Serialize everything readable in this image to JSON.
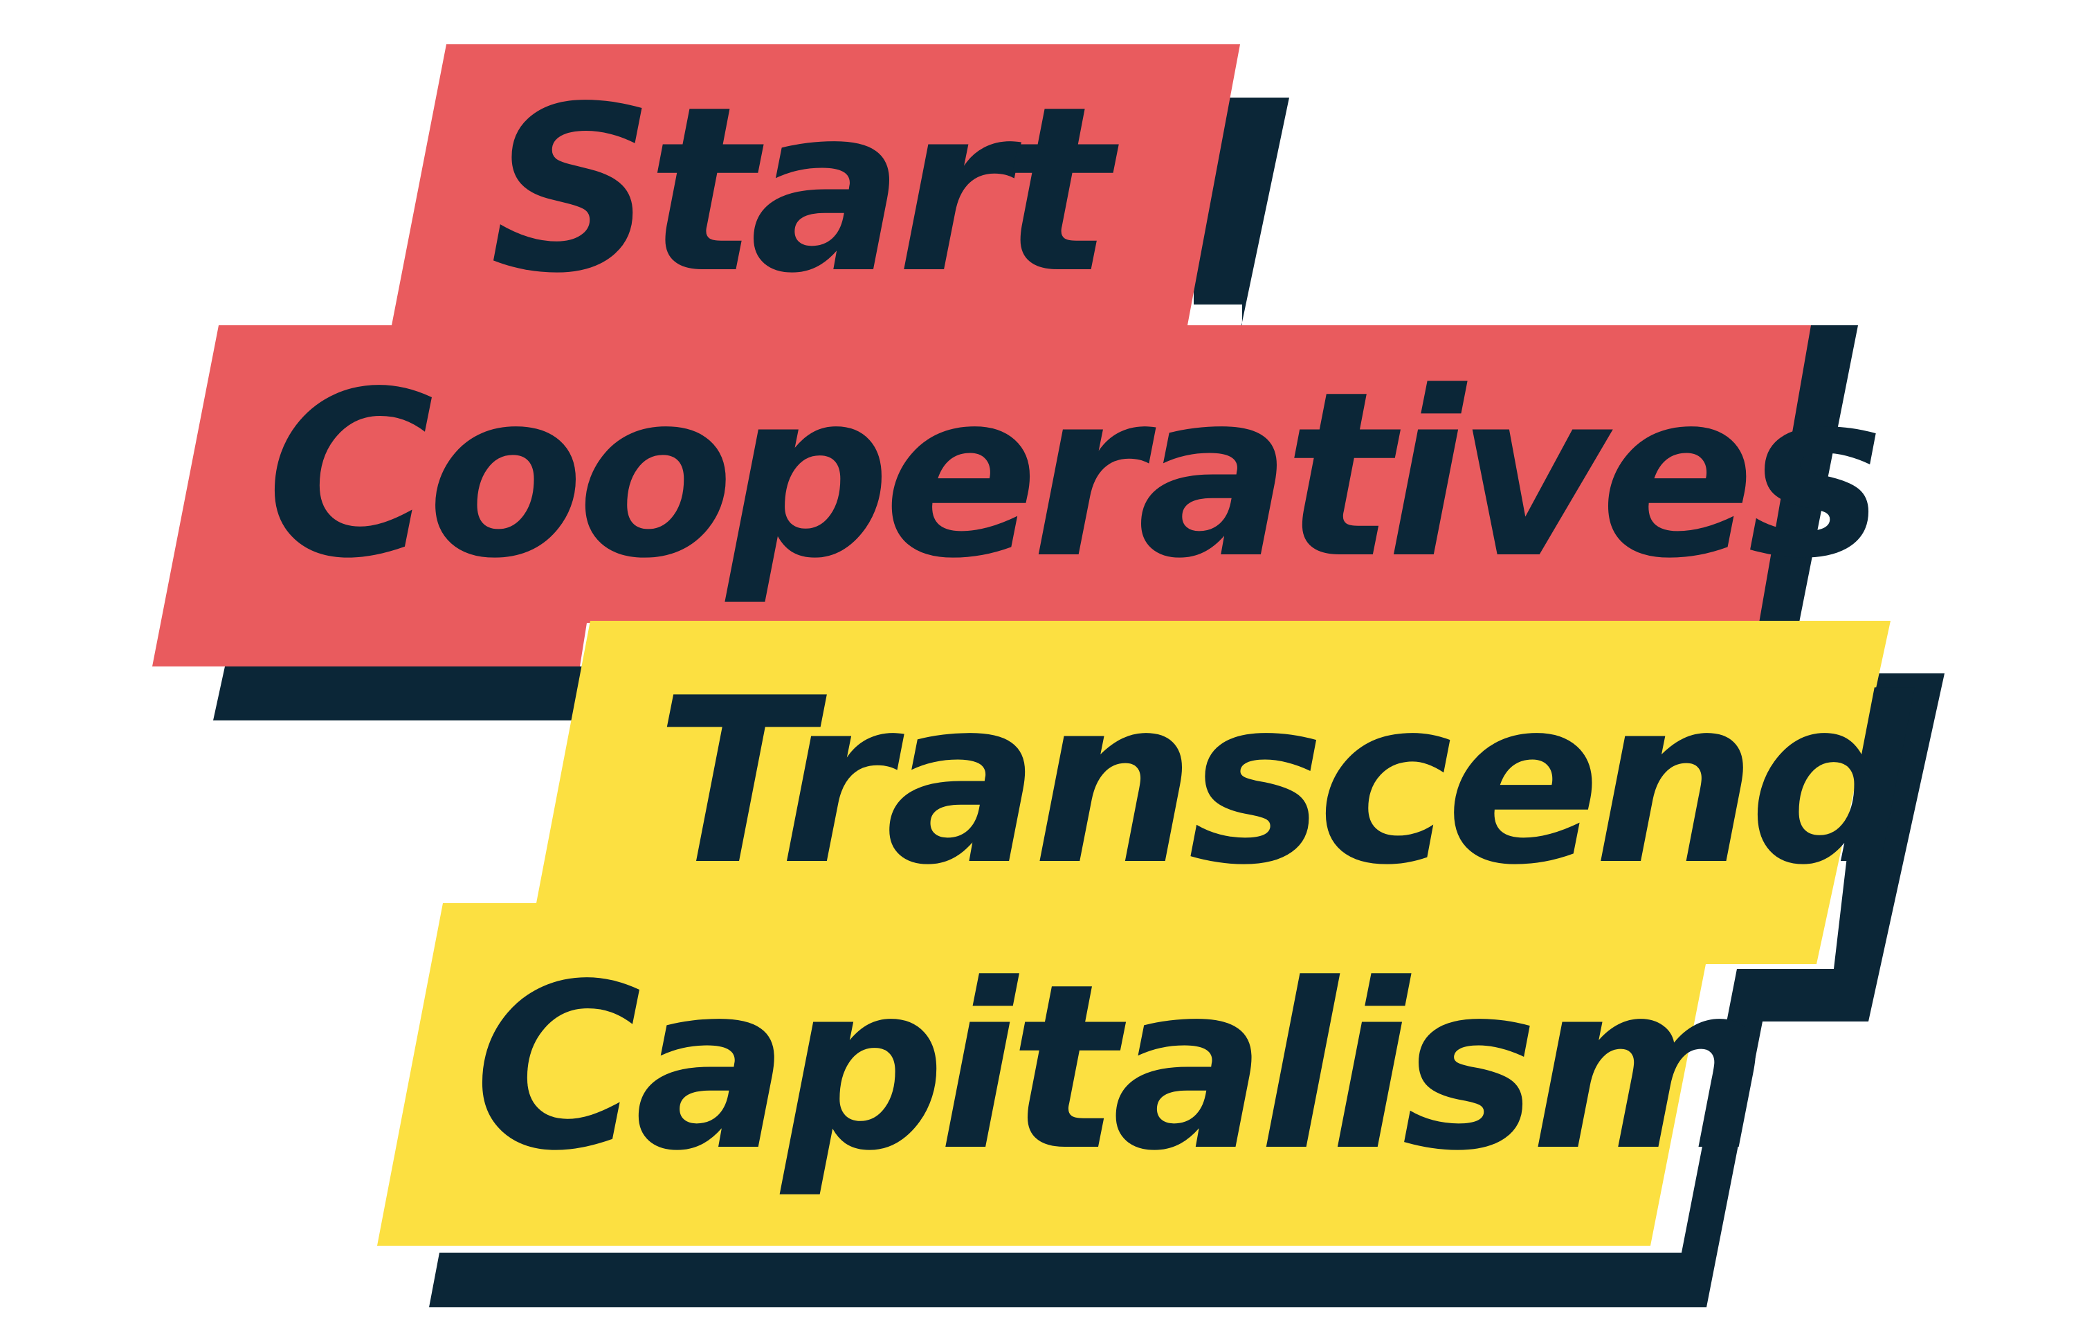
{
  "headline": {
    "line1": "Start",
    "line2": "Cooperatives",
    "line3": "Transcend",
    "line4": "Capitalism"
  },
  "colors": {
    "red_panel": "#E95B5E",
    "yellow_panel": "#FCE041",
    "shadow": "#0B2637",
    "text": "#0B2637",
    "background": "#FFFFFF"
  }
}
